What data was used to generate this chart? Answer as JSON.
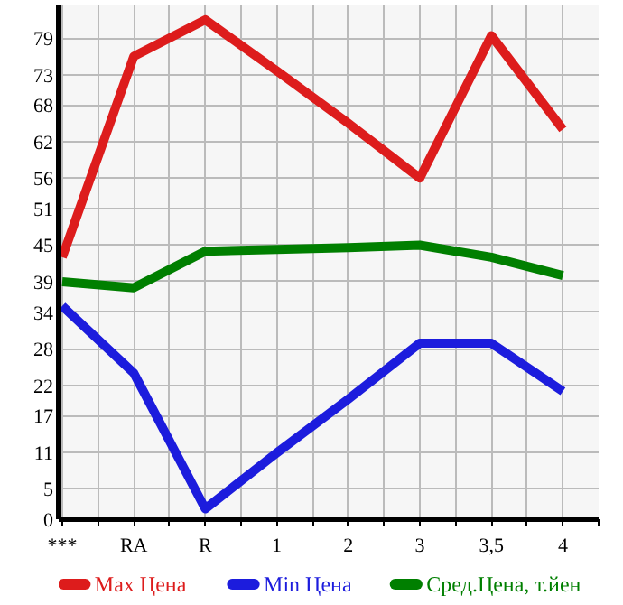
{
  "chart_data": {
    "type": "line",
    "categories": [
      "***",
      "RA",
      "R",
      "1",
      "2",
      "3",
      "3,5",
      "4"
    ],
    "series": [
      {
        "name": "Max Цена",
        "color": "#dd1c1c",
        "values": [
          43,
          76,
          82,
          73.6,
          65,
          56,
          79.4,
          64
        ]
      },
      {
        "name": "Min Цена",
        "color": "#1c1cdd",
        "values": [
          35,
          24,
          1.7,
          10.9,
          19.7,
          28.9,
          28.9,
          21
        ]
      },
      {
        "name": "Сред.Цена, т.йен",
        "color": "#007f00",
        "values": [
          39,
          38,
          44,
          44.3,
          44.6,
          45,
          43,
          40
        ]
      }
    ],
    "ylim": [
      0,
      84.5
    ],
    "yticks": [
      0,
      5,
      11,
      17,
      22,
      28,
      34,
      39,
      45,
      51,
      56,
      62,
      68,
      73,
      79
    ],
    "grid": true,
    "legend": "bottom",
    "marker": "none",
    "line_style": "solid"
  }
}
